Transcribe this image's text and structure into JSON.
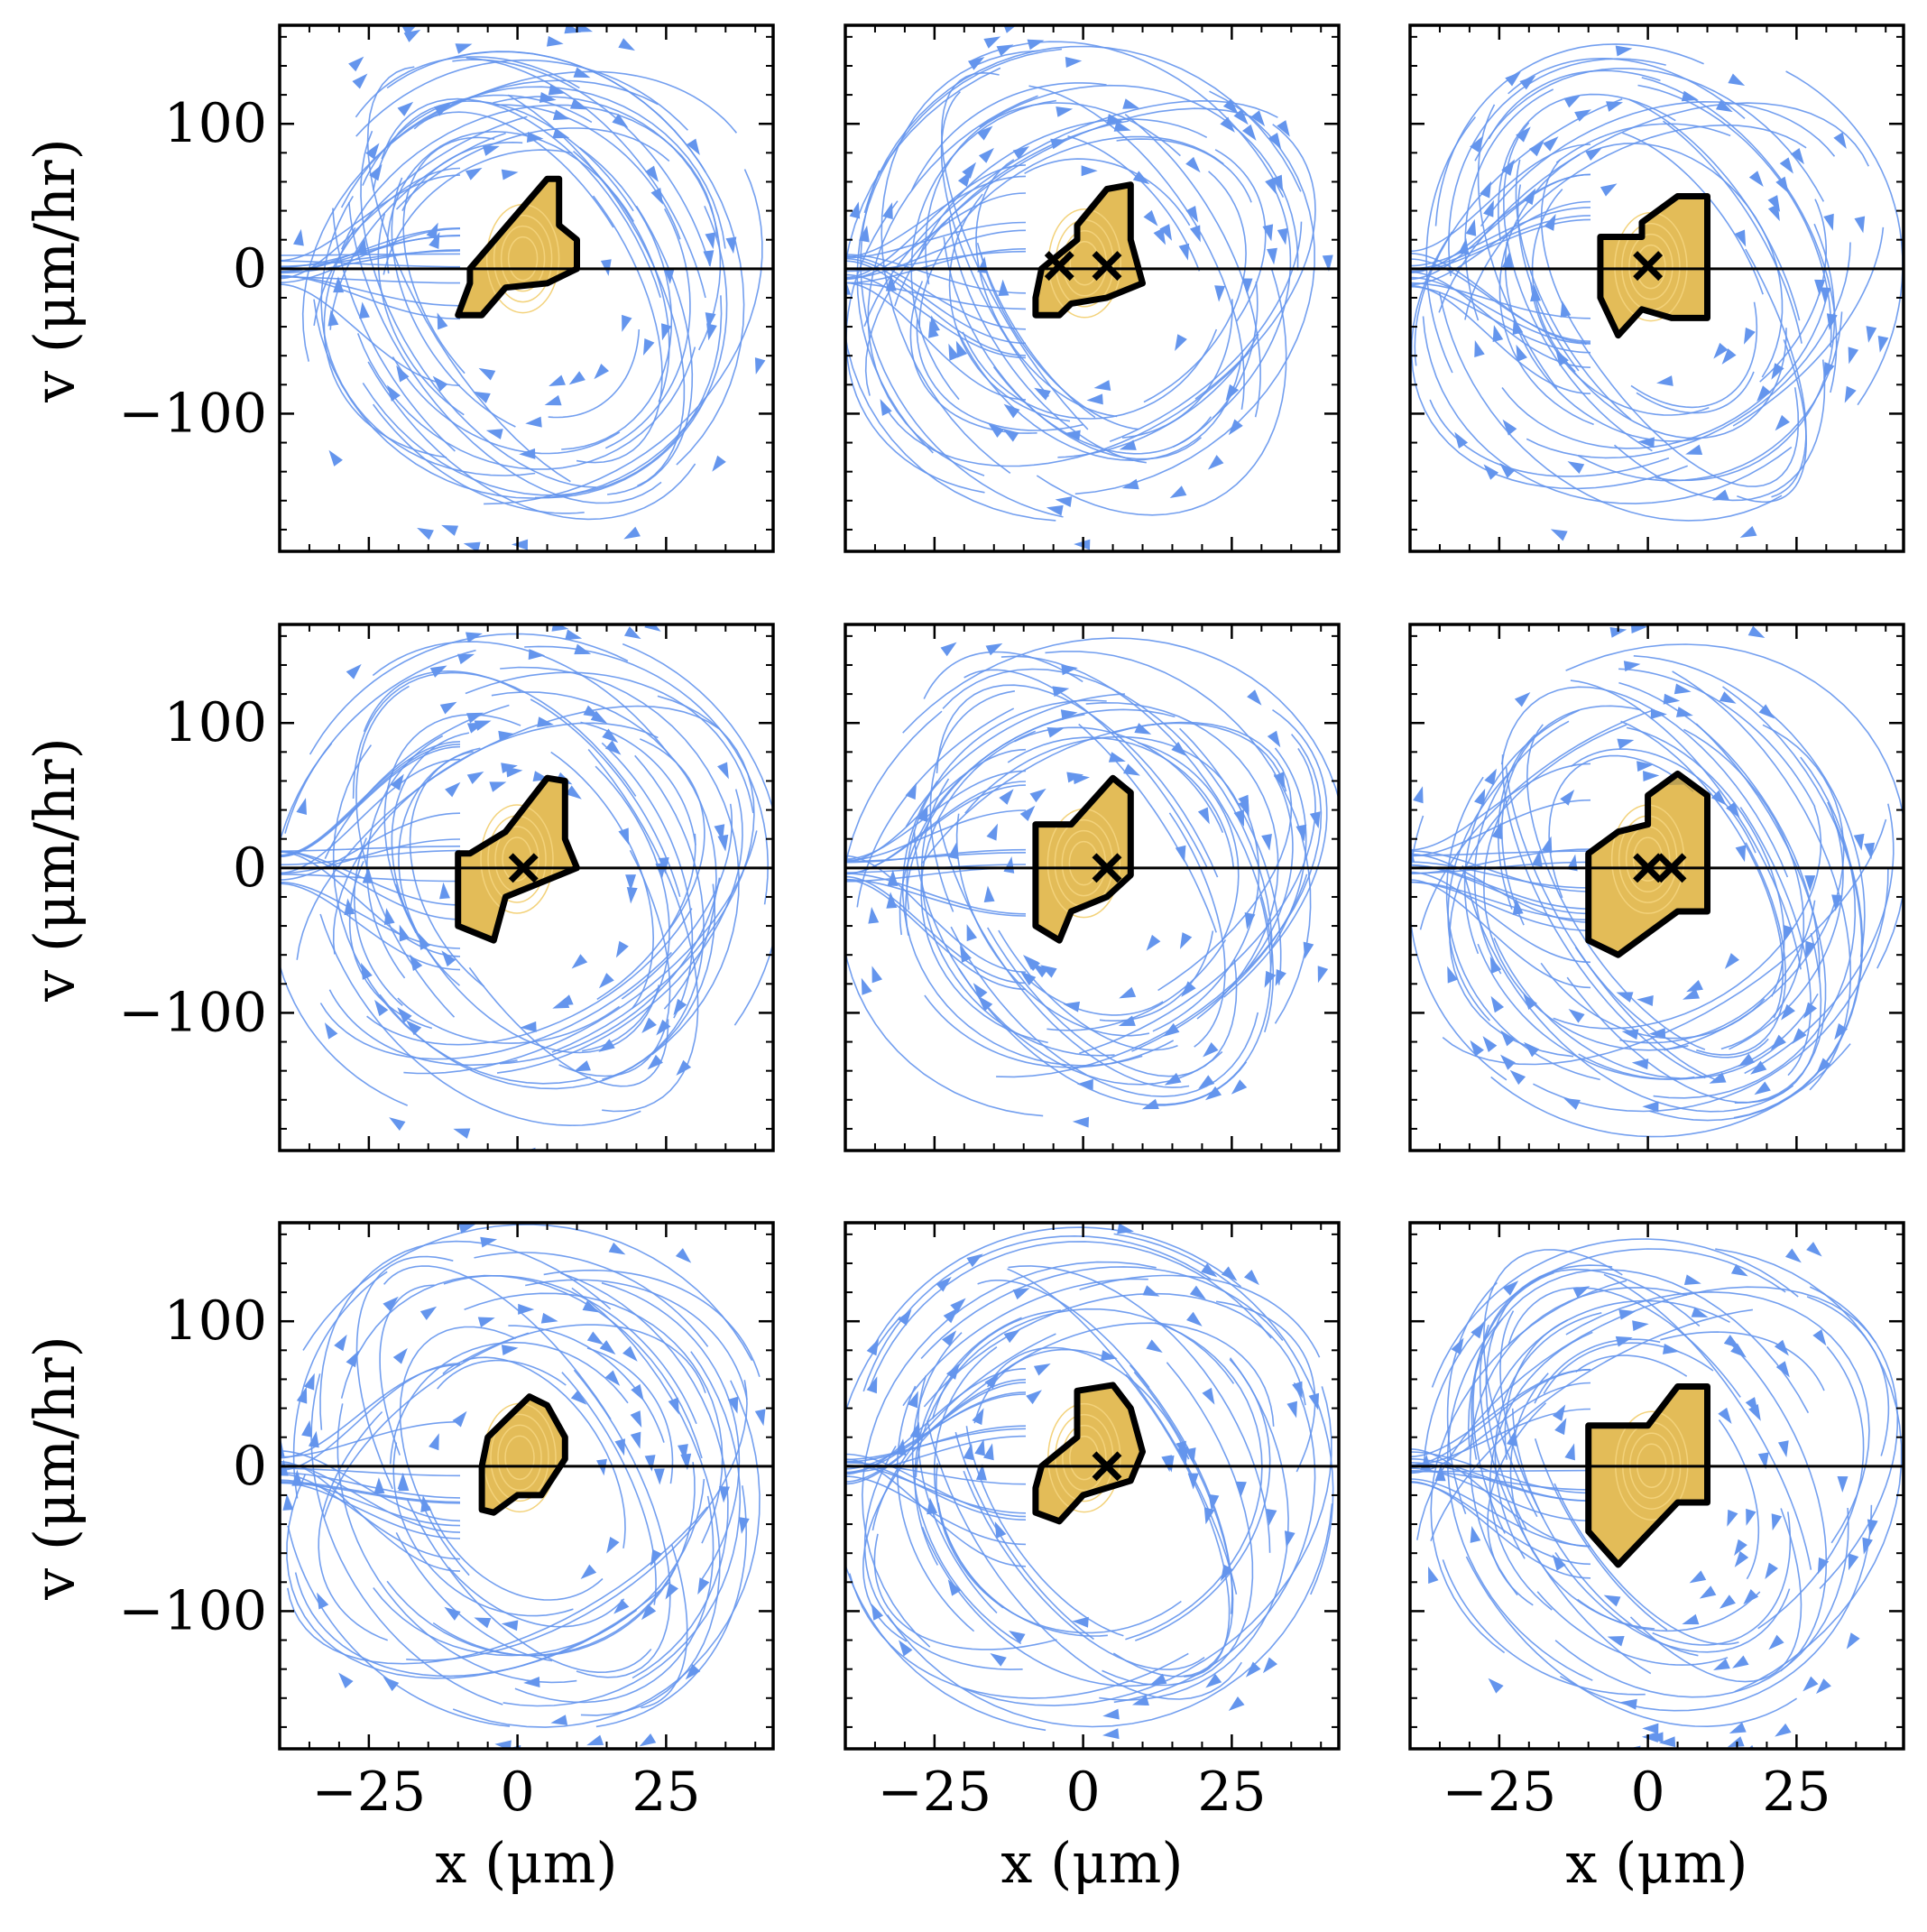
{
  "chart_data": {
    "type": "streamplot-grid",
    "rows": 3,
    "cols": 3,
    "xlabel": "x (μm)",
    "ylabel": "v (μm/hr)",
    "xlim": [
      -40,
      43
    ],
    "ylim": [
      -195,
      168
    ],
    "xticks": [
      -25,
      0,
      25
    ],
    "xtick_labels": [
      "−25",
      "0",
      "25"
    ],
    "yticks": [
      100,
      0,
      -100
    ],
    "ytick_labels": [
      "100",
      "0",
      "−100"
    ],
    "zero_line_y": 0,
    "colors": {
      "stream": "#6495ED",
      "core": "#DAA520",
      "outline": "#000000",
      "marker": "#000000"
    },
    "panels": [
      {
        "id": "r1c1",
        "fixed_points": [],
        "region": [
          [
            -8,
            0
          ],
          [
            5,
            62
          ],
          [
            7,
            62
          ],
          [
            7,
            30
          ],
          [
            10,
            20
          ],
          [
            10,
            0
          ],
          [
            5,
            -10
          ],
          [
            -2,
            -13
          ],
          [
            -6,
            -32
          ],
          [
            -10,
            -32
          ],
          [
            -8,
            -10
          ]
        ]
      },
      {
        "id": "r1c2",
        "fixed_points": [
          [
            -4,
            2
          ],
          [
            4,
            2
          ]
        ],
        "region": [
          [
            -7,
            0
          ],
          [
            -1,
            20
          ],
          [
            -1,
            30
          ],
          [
            4,
            55
          ],
          [
            8,
            58
          ],
          [
            8,
            20
          ],
          [
            10,
            -10
          ],
          [
            4,
            -20
          ],
          [
            -2,
            -24
          ],
          [
            -4,
            -32
          ],
          [
            -8,
            -32
          ],
          [
            -8,
            -20
          ]
        ]
      },
      {
        "id": "r1c3",
        "fixed_points": [
          [
            0,
            2
          ]
        ],
        "region": [
          [
            -8,
            22
          ],
          [
            -1,
            22
          ],
          [
            -1,
            32
          ],
          [
            5,
            50
          ],
          [
            10,
            50
          ],
          [
            10,
            -34
          ],
          [
            4,
            -34
          ],
          [
            -1,
            -28
          ],
          [
            -5,
            -46
          ],
          [
            -8,
            -20
          ]
        ]
      },
      {
        "id": "r2c1",
        "fixed_points": [
          [
            1,
            0
          ]
        ],
        "region": [
          [
            -8,
            10
          ],
          [
            -2,
            25
          ],
          [
            5,
            62
          ],
          [
            8,
            60
          ],
          [
            8,
            20
          ],
          [
            10,
            0
          ],
          [
            4,
            -10
          ],
          [
            -2,
            -20
          ],
          [
            -4,
            -50
          ],
          [
            -10,
            -40
          ],
          [
            -10,
            10
          ]
        ]
      },
      {
        "id": "r2c2",
        "fixed_points": [
          [
            4,
            0
          ]
        ],
        "region": [
          [
            -8,
            30
          ],
          [
            -2,
            30
          ],
          [
            5,
            62
          ],
          [
            8,
            52
          ],
          [
            8,
            -5
          ],
          [
            4,
            -20
          ],
          [
            -2,
            -30
          ],
          [
            -4,
            -50
          ],
          [
            -8,
            -40
          ]
        ]
      },
      {
        "id": "r2c3",
        "fixed_points": [
          [
            0,
            0
          ],
          [
            4,
            0
          ]
        ],
        "region": [
          [
            -10,
            10
          ],
          [
            -5,
            25
          ],
          [
            0,
            30
          ],
          [
            0,
            50
          ],
          [
            5,
            65
          ],
          [
            10,
            50
          ],
          [
            10,
            -30
          ],
          [
            5,
            -30
          ],
          [
            -5,
            -60
          ],
          [
            -10,
            -50
          ]
        ]
      },
      {
        "id": "r3c1",
        "fixed_points": [],
        "region": [
          [
            -5,
            20
          ],
          [
            -2,
            32
          ],
          [
            2,
            48
          ],
          [
            5,
            42
          ],
          [
            8,
            20
          ],
          [
            8,
            5
          ],
          [
            4,
            -20
          ],
          [
            0,
            -20
          ],
          [
            -4,
            -32
          ],
          [
            -6,
            -30
          ],
          [
            -6,
            0
          ]
        ]
      },
      {
        "id": "r3c2",
        "fixed_points": [
          [
            4,
            0
          ]
        ],
        "region": [
          [
            -7,
            0
          ],
          [
            -1,
            20
          ],
          [
            -1,
            52
          ],
          [
            5,
            56
          ],
          [
            8,
            40
          ],
          [
            10,
            10
          ],
          [
            8,
            -10
          ],
          [
            0,
            -20
          ],
          [
            -4,
            -38
          ],
          [
            -8,
            -32
          ],
          [
            -8,
            -15
          ]
        ]
      },
      {
        "id": "r3c3",
        "fixed_points": [],
        "region": [
          [
            -10,
            28
          ],
          [
            0,
            28
          ],
          [
            5,
            55
          ],
          [
            10,
            55
          ],
          [
            10,
            -25
          ],
          [
            5,
            -25
          ],
          [
            -5,
            -68
          ],
          [
            -10,
            -45
          ]
        ]
      }
    ]
  }
}
